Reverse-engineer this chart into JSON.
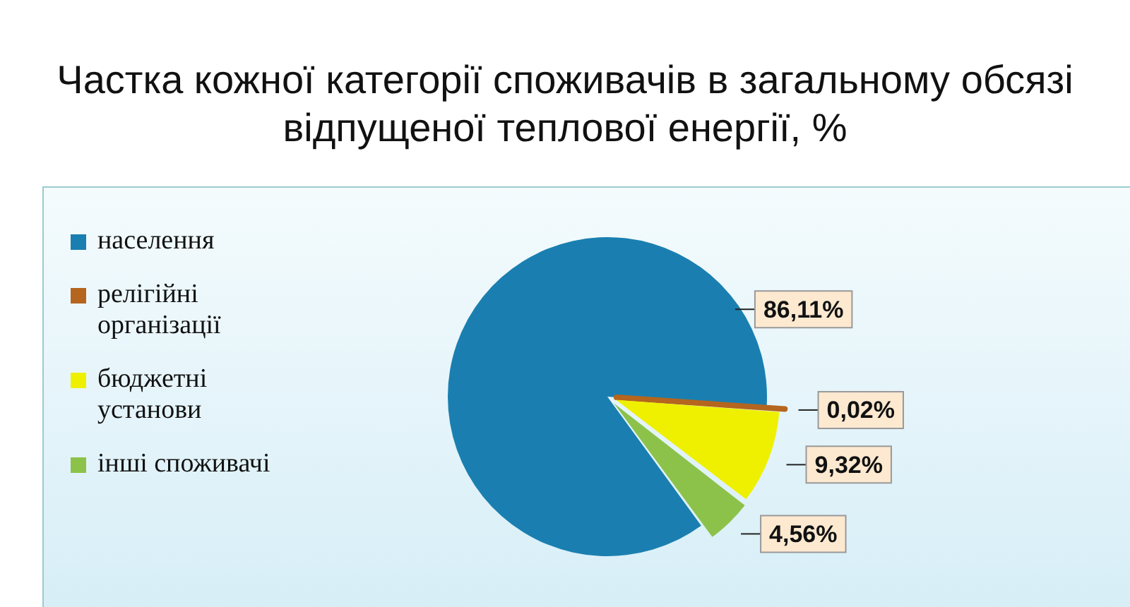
{
  "chart_data": {
    "type": "pie",
    "title": "Частка кожної категорії споживачів в загальному обсязі відпущеної теплової енергії, %",
    "categories": [
      "населення",
      "релігійні організації",
      "бюджетні установи",
      "інші споживачі"
    ],
    "values": [
      86.11,
      0.02,
      9.32,
      4.56
    ],
    "colors": [
      "#1a7fb0",
      "#b5651d",
      "#eef000",
      "#8cc24a"
    ],
    "value_labels": [
      "86,11%",
      "0,02%",
      "9,32%",
      "4,56%"
    ],
    "legend": "left"
  }
}
